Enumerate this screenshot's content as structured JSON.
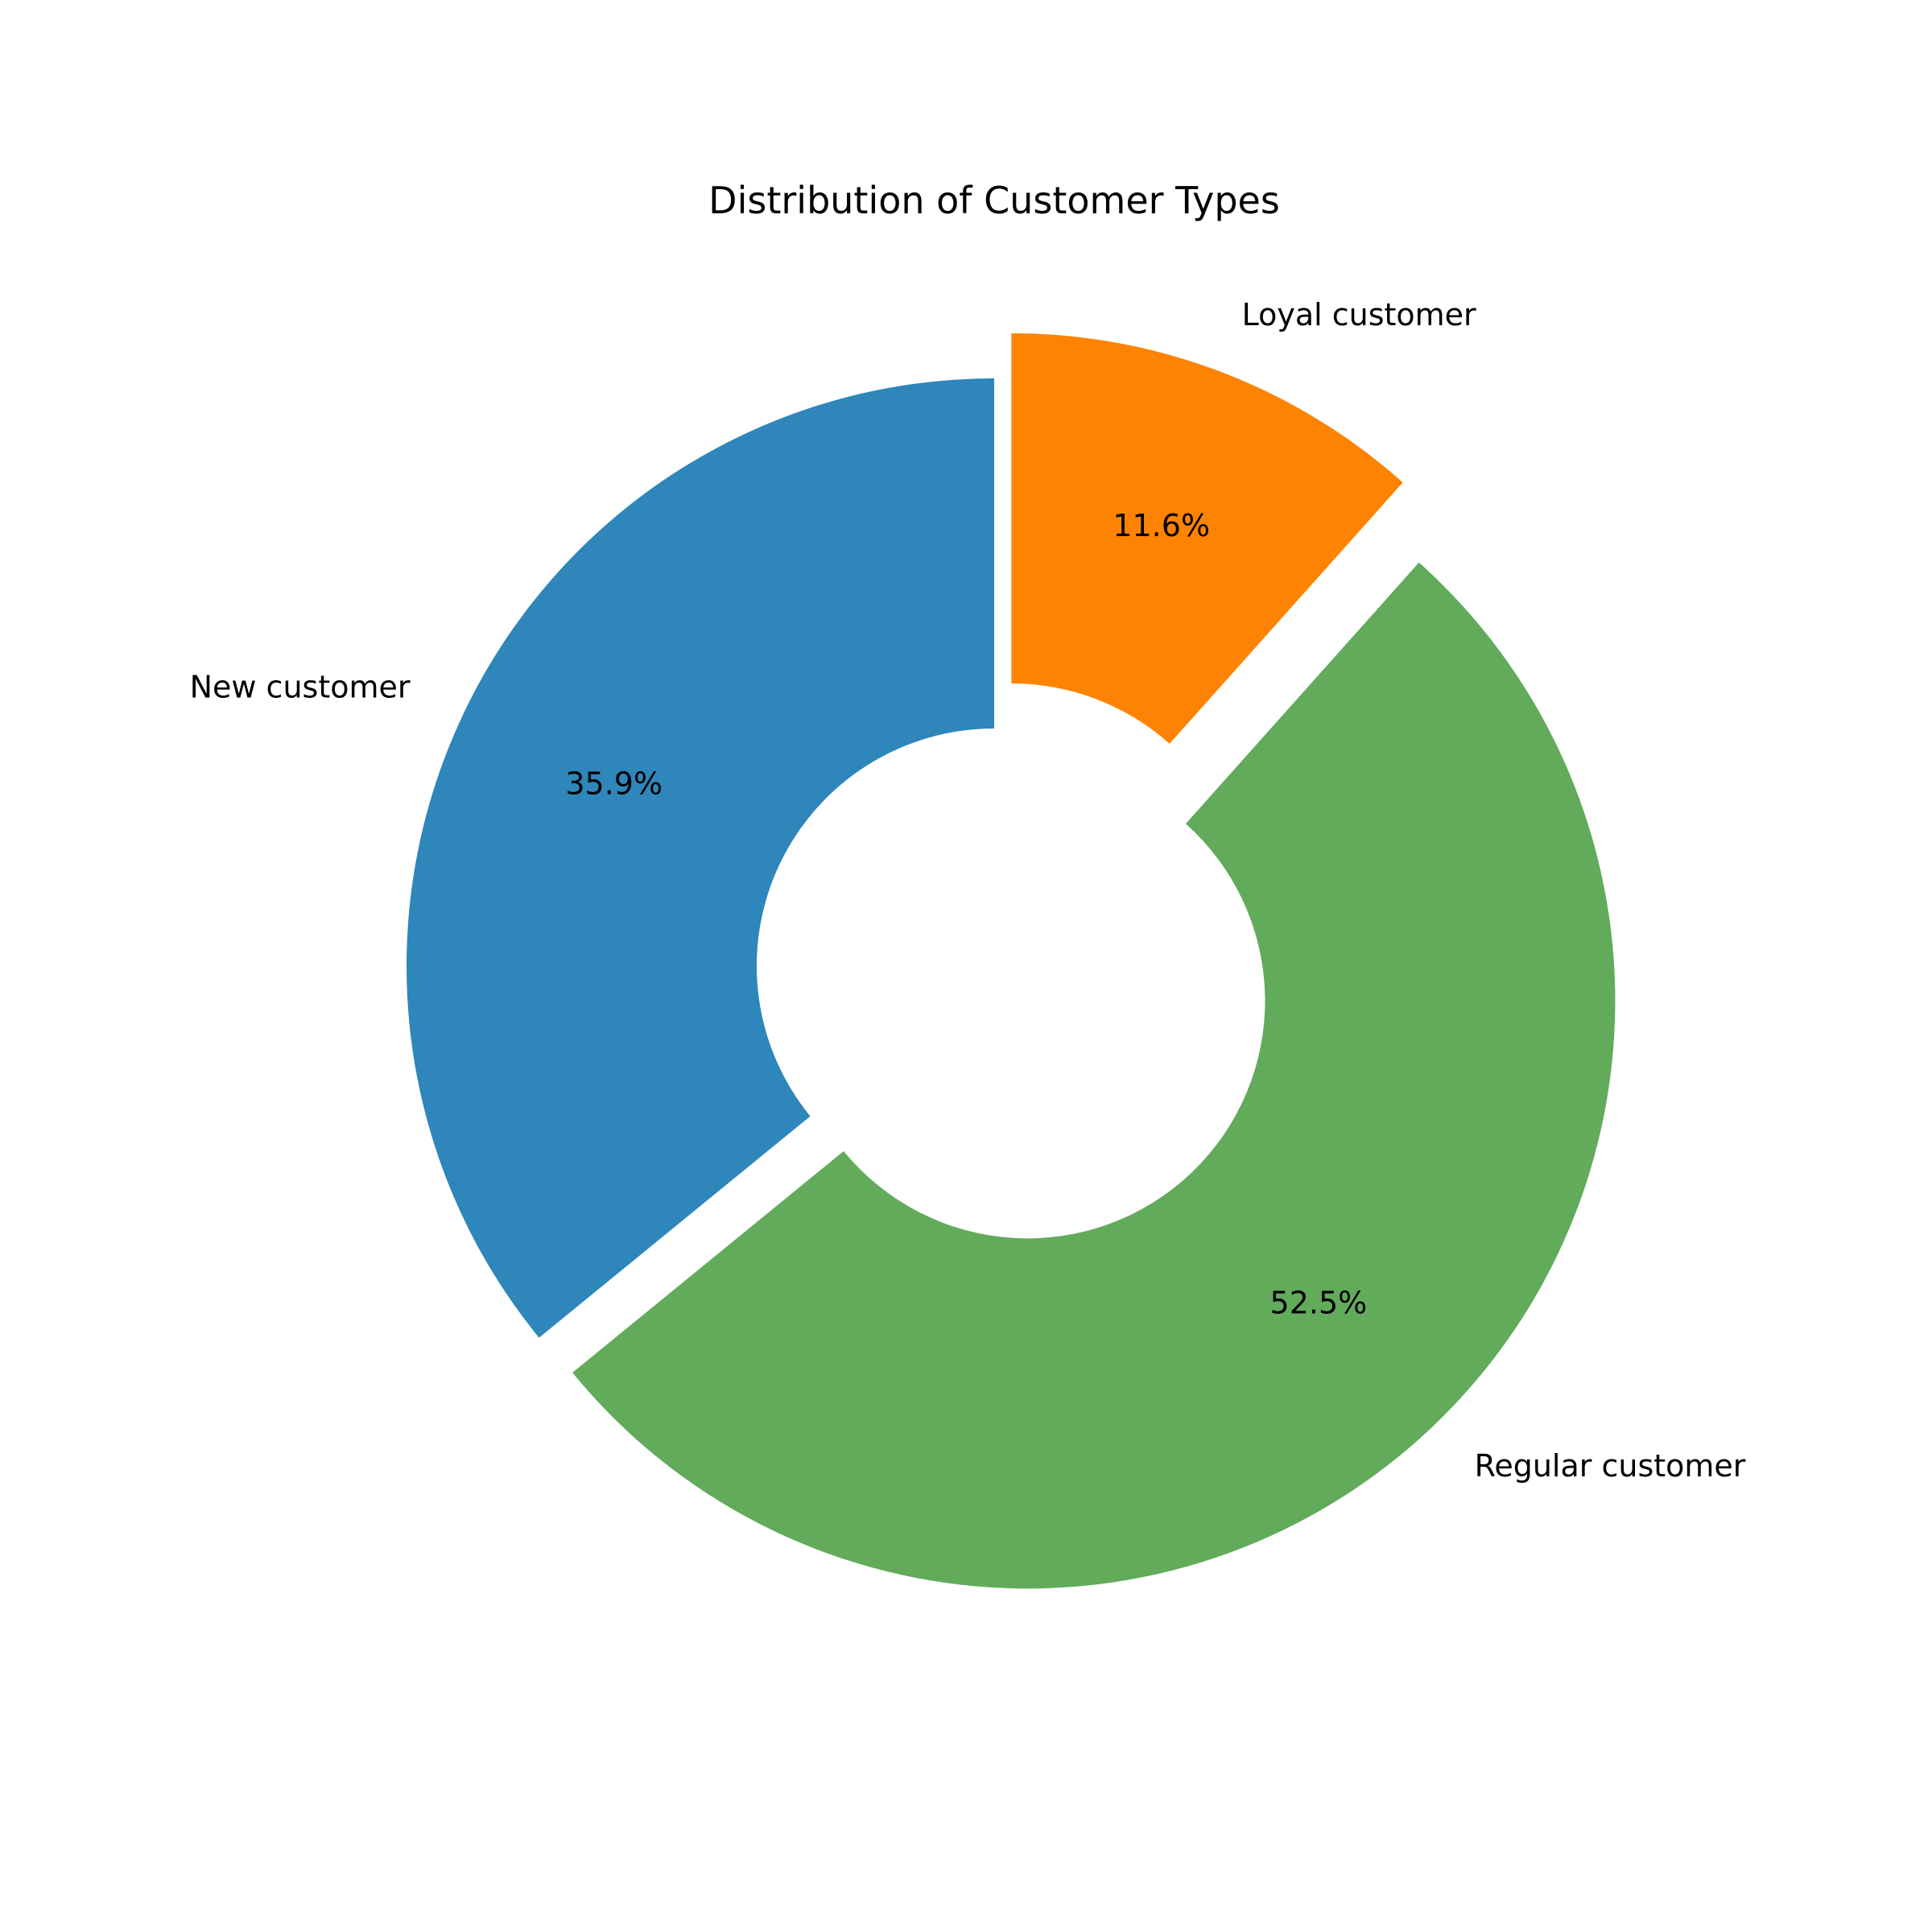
{
  "chart_data": {
    "type": "pie",
    "variant": "donut",
    "title": "Distribution of Customer Types",
    "slices": [
      {
        "label": "New customer",
        "value": 35.9,
        "pct_label": "35.9%",
        "color": "#2e86bb",
        "exploded": false
      },
      {
        "label": "Regular customer",
        "value": 52.5,
        "pct_label": "52.5%",
        "color": "#62ab5b",
        "exploded": true
      },
      {
        "label": "Loyal customer",
        "value": 11.6,
        "pct_label": "11.6%",
        "color": "#ff8303",
        "exploded": true
      }
    ],
    "start_angle_deg": 90,
    "direction": "counterclockwise",
    "legend": "none"
  }
}
